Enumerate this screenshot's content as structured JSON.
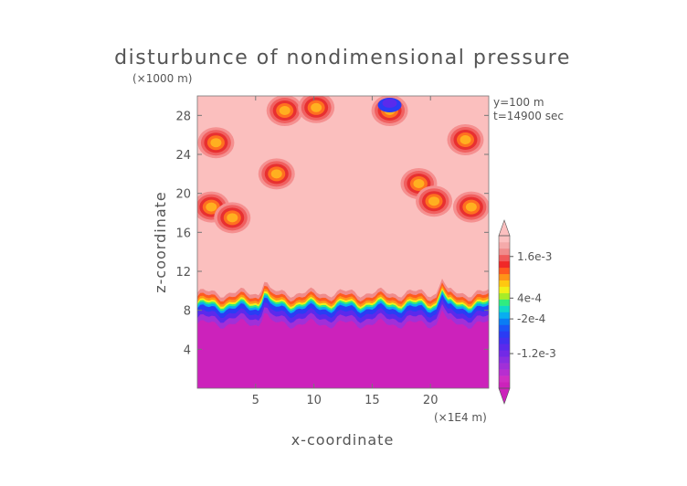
{
  "chart_data": {
    "type": "heatmap",
    "title": "disturbunce of nondimensional pressure",
    "xlabel": "x-coordinate",
    "ylabel": "z-coordinate",
    "x_unit": "(×1E4 m)",
    "y_unit": "(×1000 m)",
    "info": [
      "y=100 m",
      "t=14900 sec"
    ],
    "xlim": [
      0,
      25
    ],
    "ylim": [
      0,
      30
    ],
    "x_ticks": [
      5,
      10,
      15,
      20
    ],
    "y_ticks": [
      4,
      8,
      12,
      16,
      20,
      24,
      28
    ],
    "colorbar": {
      "labels": [
        {
          "text": "1.6e-3",
          "value": 0.0016
        },
        {
          "text": "4e-4",
          "value": 0.0004
        },
        {
          "text": "-2e-4",
          "value": -0.0002
        },
        {
          "text": "-1.2e-3",
          "value": -0.0012
        }
      ],
      "colors": [
        "#cc22bb",
        "#d02ec3",
        "#b72ed0",
        "#a030d8",
        "#8a2ee0",
        "#722ae6",
        "#5a2aec",
        "#4230f0",
        "#2a3cf4",
        "#1a55f6",
        "#0a7cf4",
        "#08aef0",
        "#10d8c8",
        "#30ec80",
        "#a8ec28",
        "#f2f018",
        "#ffc810",
        "#ff9418",
        "#ff5a20",
        "#f02828",
        "#f05a5a",
        "#f08c8c",
        "#f5aaaa",
        "#fcc0c0"
      ]
    },
    "field": {
      "background": "#fbbfbe",
      "lower_layer_top_km": 8.2,
      "lower_layer_color": "#cc22bb",
      "spikes_x": [
        5.8,
        21.0
      ],
      "blobs": [
        {
          "x": 1.6,
          "z": 25.2
        },
        {
          "x": 1.2,
          "z": 18.6
        },
        {
          "x": 3.0,
          "z": 17.5
        },
        {
          "x": 6.8,
          "z": 22.0
        },
        {
          "x": 7.5,
          "z": 28.5
        },
        {
          "x": 10.2,
          "z": 28.8
        },
        {
          "x": 16.5,
          "z": 28.5
        },
        {
          "x": 19.0,
          "z": 21.0
        },
        {
          "x": 20.3,
          "z": 19.2
        },
        {
          "x": 23.5,
          "z": 18.6
        },
        {
          "x": 23.0,
          "z": 25.5
        }
      ]
    }
  }
}
